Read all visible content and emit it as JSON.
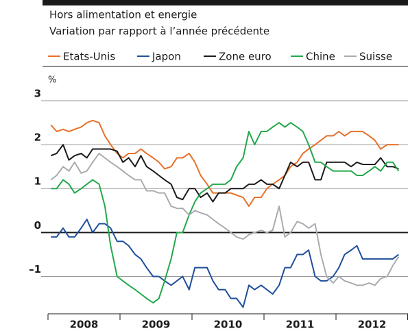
{
  "chart_data": {
    "type": "line",
    "subtitle": [
      "Hors alimentation et energie",
      "Variation par rapport à l’année précédente"
    ],
    "y_unit": "%",
    "x": [
      2008.04,
      2008.12,
      2008.21,
      2008.29,
      2008.37,
      2008.46,
      2008.54,
      2008.62,
      2008.71,
      2008.79,
      2008.87,
      2008.96,
      2009.04,
      2009.12,
      2009.21,
      2009.29,
      2009.37,
      2009.46,
      2009.54,
      2009.62,
      2009.71,
      2009.79,
      2009.87,
      2009.96,
      2010.04,
      2010.12,
      2010.21,
      2010.29,
      2010.37,
      2010.46,
      2010.54,
      2010.62,
      2010.71,
      2010.79,
      2010.87,
      2010.96,
      2011.04,
      2011.12,
      2011.21,
      2011.29,
      2011.37,
      2011.46,
      2011.54,
      2011.62,
      2011.71,
      2011.79,
      2011.87,
      2011.96,
      2012.04,
      2012.12,
      2012.21,
      2012.29,
      2012.37,
      2012.46,
      2012.54,
      2012.62,
      2012.71,
      2012.79,
      2012.87
    ],
    "xlim": [
      2008,
      2013
    ],
    "xticks": [
      2008,
      2009,
      2010,
      2011,
      2012,
      2013
    ],
    "categories": [
      "2008",
      "2009",
      "2010",
      "2011",
      "2012"
    ],
    "ylim": [
      -1.85,
      3
    ],
    "yticks": [
      {
        "value": -1,
        "label": "–1"
      },
      0,
      1,
      2,
      3
    ],
    "grid": true,
    "series": [
      {
        "name": "Etats-Unis",
        "color": "#e8702a",
        "values": [
          2.45,
          2.3,
          2.35,
          2.3,
          2.35,
          2.4,
          2.5,
          2.55,
          2.5,
          2.2,
          2.0,
          1.8,
          1.7,
          1.8,
          1.8,
          1.9,
          1.8,
          1.7,
          1.6,
          1.45,
          1.5,
          1.7,
          1.7,
          1.8,
          1.6,
          1.3,
          1.1,
          0.9,
          0.9,
          0.9,
          0.9,
          0.85,
          0.8,
          0.6,
          0.8,
          0.8,
          1.0,
          1.1,
          1.2,
          1.3,
          1.5,
          1.6,
          1.8,
          1.9,
          2.0,
          2.1,
          2.2,
          2.2,
          2.3,
          2.2,
          2.3,
          2.3,
          2.3,
          2.2,
          2.1,
          1.9,
          2.0,
          2.0,
          2.0
        ]
      },
      {
        "name": "Japon",
        "color": "#1f4e9c",
        "values": [
          -0.1,
          -0.1,
          0.1,
          -0.1,
          -0.1,
          0.1,
          0.3,
          0.0,
          0.2,
          0.2,
          0.1,
          -0.2,
          -0.2,
          -0.3,
          -0.5,
          -0.6,
          -0.8,
          -1.0,
          -1.0,
          -1.1,
          -1.2,
          -1.1,
          -1.0,
          -1.3,
          -0.8,
          -0.8,
          -0.8,
          -1.1,
          -1.3,
          -1.3,
          -1.5,
          -1.5,
          -1.7,
          -1.2,
          -1.3,
          -1.2,
          -1.3,
          -1.4,
          -1.2,
          -0.8,
          -0.8,
          -0.5,
          -0.5,
          -0.4,
          -1.0,
          -1.1,
          -1.1,
          -1.0,
          -0.8,
          -0.5,
          -0.4,
          -0.3,
          -0.6,
          -0.6,
          -0.6,
          -0.6,
          -0.6,
          -0.6,
          -0.5
        ]
      },
      {
        "name": "Zone euro",
        "color": "#1a1a1a",
        "values": [
          1.75,
          1.8,
          2.0,
          1.65,
          1.75,
          1.8,
          1.7,
          1.9,
          1.9,
          1.9,
          1.9,
          1.85,
          1.6,
          1.7,
          1.5,
          1.75,
          1.5,
          1.4,
          1.3,
          1.2,
          1.1,
          0.8,
          0.75,
          1.0,
          1.0,
          0.8,
          0.9,
          0.7,
          0.9,
          0.9,
          1.0,
          1.0,
          1.0,
          1.1,
          1.1,
          1.2,
          1.1,
          1.1,
          1.0,
          1.3,
          1.6,
          1.5,
          1.6,
          1.6,
          1.2,
          1.2,
          1.6,
          1.6,
          1.6,
          1.6,
          1.5,
          1.6,
          1.55,
          1.55,
          1.55,
          1.7,
          1.5,
          1.5,
          1.45
        ]
      },
      {
        "name": "Chine",
        "color": "#22a84a",
        "values": [
          1.0,
          1.0,
          1.2,
          1.1,
          0.9,
          1.0,
          1.1,
          1.2,
          1.1,
          0.6,
          -0.3,
          -1.0,
          -1.1,
          -1.2,
          -1.3,
          -1.4,
          -1.5,
          -1.6,
          -1.5,
          -1.1,
          -0.6,
          0.0,
          0.0,
          0.4,
          0.7,
          0.9,
          1.0,
          1.1,
          1.1,
          1.1,
          1.2,
          1.5,
          1.7,
          2.3,
          2.0,
          2.3,
          2.3,
          2.4,
          2.5,
          2.4,
          2.5,
          2.4,
          2.3,
          2.0,
          1.6,
          1.6,
          1.5,
          1.4,
          1.4,
          1.4,
          1.4,
          1.3,
          1.3,
          1.4,
          1.5,
          1.4,
          1.6,
          1.6,
          1.4
        ]
      },
      {
        "name": "Suisse",
        "color": "#a8acb0",
        "values": [
          1.2,
          1.3,
          1.5,
          1.4,
          1.6,
          1.35,
          1.4,
          1.6,
          1.8,
          1.7,
          1.6,
          1.5,
          1.4,
          1.3,
          1.2,
          1.2,
          0.95,
          0.95,
          0.9,
          0.9,
          0.6,
          0.55,
          0.55,
          0.4,
          0.5,
          0.45,
          0.4,
          0.3,
          0.2,
          0.1,
          0.0,
          -0.1,
          -0.15,
          -0.05,
          0.0,
          0.05,
          0.0,
          0.05,
          0.6,
          -0.1,
          0.0,
          0.25,
          0.2,
          0.1,
          0.2,
          -0.5,
          -1.0,
          -1.15,
          -1.0,
          -1.1,
          -1.15,
          -1.2,
          -1.2,
          -1.15,
          -1.2,
          -1.05,
          -1.0,
          -0.75,
          -0.55
        ]
      }
    ]
  }
}
